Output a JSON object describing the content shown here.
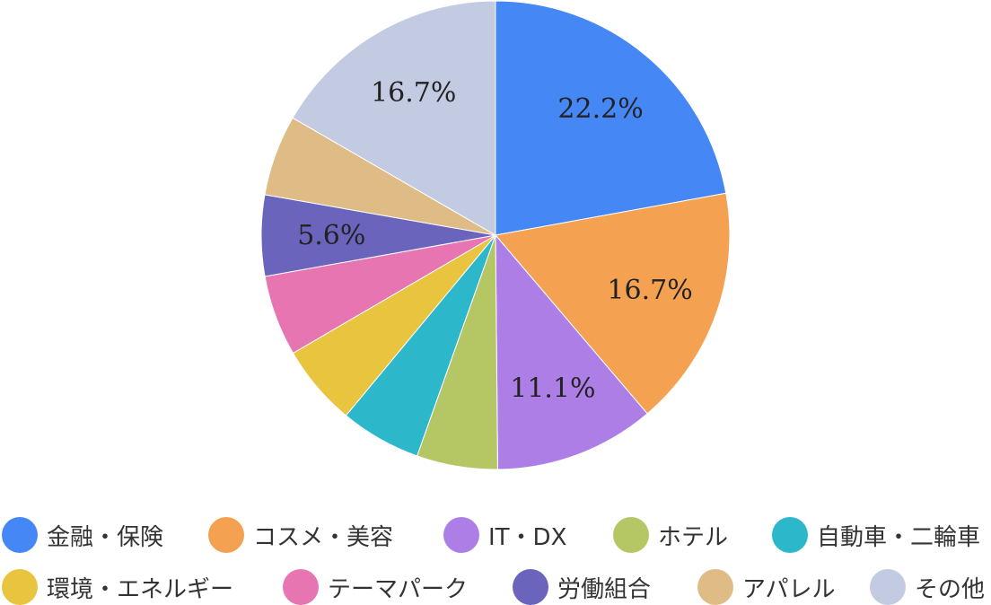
{
  "chart_data": {
    "type": "pie",
    "title": "",
    "categories": [
      "金融・保険",
      "コスメ・美容",
      "IT・DX",
      "ホテル",
      "自動車・二輪車",
      "環境・エネルギー",
      "テーマパーク",
      "労働組合",
      "アパレル",
      "その他"
    ],
    "values": [
      22.2,
      16.7,
      11.1,
      5.6,
      5.6,
      5.6,
      5.6,
      5.6,
      5.6,
      16.7
    ],
    "data_labels": [
      "22.2%",
      "16.7%",
      "11.1%",
      "",
      "",
      "",
      "",
      "5.6%",
      "",
      "16.7%"
    ],
    "colors": [
      "#4487f5",
      "#f4a152",
      "#ad7fe6",
      "#b5c665",
      "#2cb8ca",
      "#e9c43e",
      "#e675b2",
      "#6a64bd",
      "#dfbb85",
      "#c3cbe2"
    ],
    "start_angle_deg": 0,
    "direction": "clockwise",
    "legend": {
      "position": "bottom",
      "items": [
        "金融・保険",
        "コスメ・美容",
        "IT・DX",
        "ホテル",
        "自動車・二輪車",
        "環境・エネルギー",
        "テーマパーク",
        "労働組合",
        "アパレル",
        "その他"
      ]
    }
  }
}
